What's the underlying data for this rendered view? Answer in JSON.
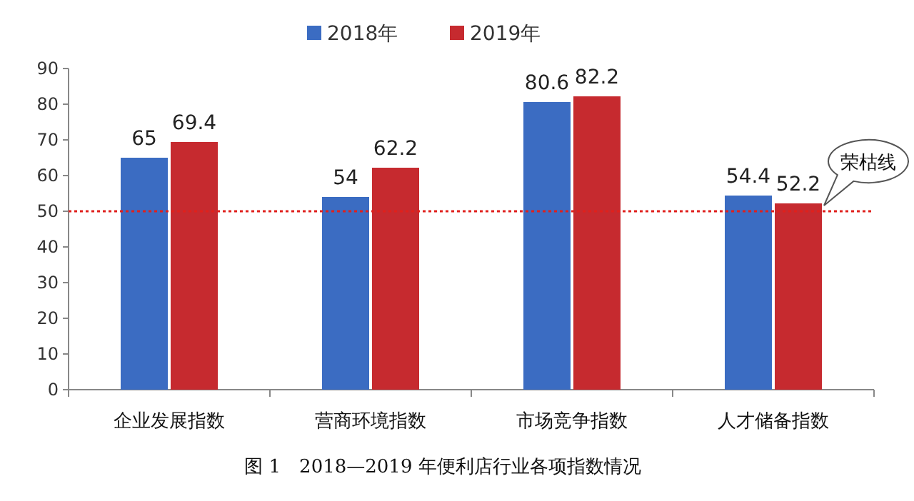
{
  "chart_data": {
    "type": "bar",
    "categories": [
      "企业发展指数",
      "营商环境指数",
      "市场竞争指数",
      "人才储备指数"
    ],
    "series": [
      {
        "name": "2018年",
        "color": "#3b6cc2",
        "values": [
          65,
          54,
          80.6,
          54.4
        ]
      },
      {
        "name": "2019年",
        "color": "#c62a2f",
        "values": [
          69.4,
          62.2,
          82.2,
          52.2
        ]
      }
    ],
    "ylim": [
      0,
      90
    ],
    "yticks": [
      0,
      10,
      20,
      30,
      40,
      50,
      60,
      70,
      80,
      90
    ],
    "data_labels": true,
    "legend": "top",
    "grid": false,
    "ref_lines": [
      {
        "axis": "y",
        "value": 50,
        "label": "荣枯线",
        "color": "#e0201c",
        "line_style": "dotted"
      }
    ],
    "annotations": [
      "图 1　2018—2019 年便利店行业各项指数情况"
    ]
  }
}
